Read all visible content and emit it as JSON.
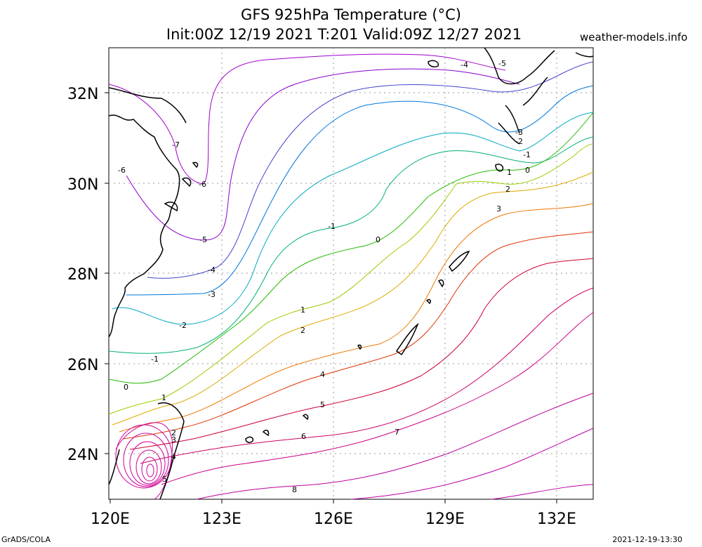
{
  "title_line1": "GFS 925hPa Temperature (°C)",
  "title_line2": "Init:00Z 12/19 2021 T:201 Valid:09Z 12/27 2021",
  "site": "weather-models.info",
  "footer_left": "GrADS/COLA",
  "footer_right": "2021-12-19-13:30",
  "lat_ticks": [
    "32N",
    "30N",
    "28N",
    "26N",
    "24N"
  ],
  "lon_ticks": [
    "120E",
    "123E",
    "126E",
    "129E",
    "132E"
  ],
  "contour_labels": [
    {
      "text": "-7",
      "color": "#9900cc"
    },
    {
      "text": "-6",
      "color": "#9900cc"
    },
    {
      "text": "-6",
      "color": "#9900cc"
    },
    {
      "text": "-5",
      "color": "#7a00cc"
    },
    {
      "text": "-5",
      "color": "#7a00cc"
    },
    {
      "text": "-4",
      "color": "#3333cc"
    },
    {
      "text": "-4",
      "color": "#3333cc"
    },
    {
      "text": "-3",
      "color": "#0066dd"
    },
    {
      "text": "-3",
      "color": "#0066dd"
    },
    {
      "text": "-2",
      "color": "#00a0c0"
    },
    {
      "text": "-2",
      "color": "#00a0c0"
    },
    {
      "text": "-1",
      "color": "#00b070"
    },
    {
      "text": "-1",
      "color": "#00b070"
    },
    {
      "text": "-1",
      "color": "#00b070"
    },
    {
      "text": "0",
      "color": "#22bb00"
    },
    {
      "text": "0",
      "color": "#22bb00"
    },
    {
      "text": "0",
      "color": "#22bb00"
    },
    {
      "text": "1",
      "color": "#99cc00"
    },
    {
      "text": "1",
      "color": "#99cc00"
    },
    {
      "text": "1",
      "color": "#99cc00"
    },
    {
      "text": "2",
      "color": "#ddaa00"
    },
    {
      "text": "2",
      "color": "#ddaa00"
    },
    {
      "text": "2",
      "color": "#ddaa00"
    },
    {
      "text": "3",
      "color": "#ee7700"
    },
    {
      "text": "3",
      "color": "#ee7700"
    },
    {
      "text": "4",
      "color": "#dd3300"
    },
    {
      "text": "4",
      "color": "#dd3300"
    },
    {
      "text": "5",
      "color": "#cc0033"
    },
    {
      "text": "5",
      "color": "#cc0033"
    },
    {
      "text": "6",
      "color": "#cc0066"
    },
    {
      "text": "7",
      "color": "#cc0088"
    },
    {
      "text": "8",
      "color": "#bb0099"
    }
  ],
  "colors": {
    "frame": "#000000",
    "grid": "#999999",
    "coast": "#000000"
  }
}
